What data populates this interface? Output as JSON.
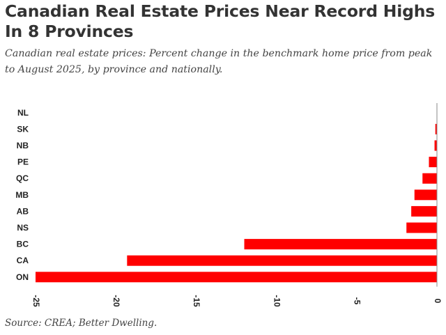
{
  "header": {
    "title": "Canadian Real Estate Prices Near Record Highs In 8 Provinces",
    "subtitle": "Canadian real estate prices: Percent change in the benchmark home price from peak to August 2025, by province and nationally."
  },
  "footer": {
    "source": "Source: CREA; Better Dwelling."
  },
  "chart_data": {
    "type": "bar",
    "orientation": "horizontal",
    "title": "Canadian Real Estate Prices Near Record Highs In 8 Provinces",
    "subtitle": "Canadian real estate prices: Percent change in the benchmark home price from peak to August 2025, by province and nationally.",
    "xlabel": "",
    "ylabel": "",
    "categories": [
      "NL",
      "SK",
      "NB",
      "PE",
      "QC",
      "MB",
      "AB",
      "NS",
      "BC",
      "CA",
      "ON"
    ],
    "values": [
      0.0,
      -0.1,
      -0.15,
      -0.5,
      -0.9,
      -1.4,
      -1.6,
      -1.9,
      -12.0,
      -19.3,
      -25.0
    ],
    "xlim": [
      -25,
      0
    ],
    "xticks": [
      -25,
      -20,
      -15,
      -10,
      -5,
      0
    ],
    "xtick_labels": [
      "-25",
      "-20",
      "-15",
      "-10",
      "-5",
      "0"
    ],
    "bar_color": "#ff0000",
    "axis_color": "#888888",
    "grid": false,
    "legend": "none"
  }
}
